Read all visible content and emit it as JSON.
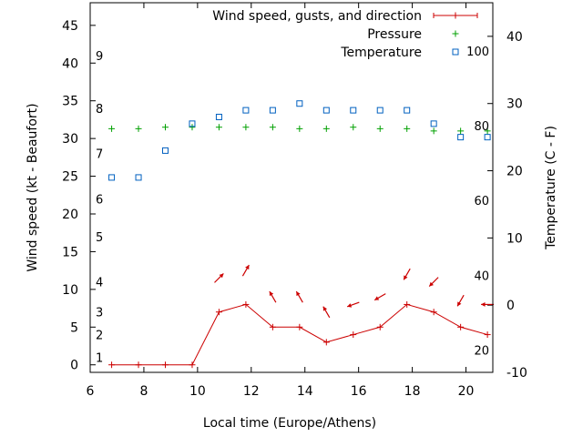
{
  "chart_data": {
    "type": "line",
    "xlabel": "Local time (Europe/Athens)",
    "ylabel_left": "Wind speed (kt - Beaufort)",
    "ylabel_right": "Temperature (C - F)",
    "xlim": [
      6,
      21
    ],
    "ylim_left": [
      -1,
      48
    ],
    "ylim_right": [
      -10,
      45
    ],
    "x_ticks": [
      6,
      8,
      10,
      12,
      14,
      16,
      18,
      20
    ],
    "y_ticks_left": [
      0,
      5,
      10,
      15,
      20,
      25,
      30,
      35,
      40,
      45
    ],
    "y_ticks_right": [
      -10,
      0,
      10,
      20,
      30,
      40
    ],
    "beaufort_labels": [
      {
        "label": "1",
        "kt": 1
      },
      {
        "label": "2",
        "kt": 4
      },
      {
        "label": "3",
        "kt": 7
      },
      {
        "label": "4",
        "kt": 11
      },
      {
        "label": "5",
        "kt": 17
      },
      {
        "label": "6",
        "kt": 22
      },
      {
        "label": "7",
        "kt": 28
      },
      {
        "label": "8",
        "kt": 34
      },
      {
        "label": "9",
        "kt": 41
      }
    ],
    "fahrenheit_labels": [
      {
        "label": "20",
        "temp_c": -6.7
      },
      {
        "label": "40",
        "temp_c": 4.4
      },
      {
        "label": "60",
        "temp_c": 15.6
      },
      {
        "label": "80",
        "temp_c": 26.7
      },
      {
        "label": "100",
        "temp_c": 37.8
      }
    ],
    "legend_position": "top-right",
    "series": [
      {
        "name": "Wind speed, gusts, and direction",
        "axis": "left",
        "style": "line-with-plus",
        "color": "#cc0000",
        "x": [
          6.8,
          7.8,
          8.8,
          9.8,
          10.8,
          11.8,
          12.8,
          13.8,
          14.8,
          15.8,
          16.8,
          17.8,
          18.8,
          19.8,
          20.8
        ],
        "y": [
          0,
          0,
          0,
          0,
          7,
          8,
          5,
          5,
          3,
          4,
          5,
          8,
          7,
          5,
          4
        ],
        "direction_arrows": [
          {
            "x": 10.8,
            "y": 11.5,
            "angle_deg": 225
          },
          {
            "x": 11.8,
            "y": 12.5,
            "angle_deg": 240
          },
          {
            "x": 12.8,
            "y": 9.0,
            "angle_deg": 300
          },
          {
            "x": 13.8,
            "y": 9.0,
            "angle_deg": 300
          },
          {
            "x": 14.8,
            "y": 7.0,
            "angle_deg": 300
          },
          {
            "x": 15.8,
            "y": 8.0,
            "angle_deg": 20
          },
          {
            "x": 16.8,
            "y": 9.0,
            "angle_deg": 30
          },
          {
            "x": 17.8,
            "y": 12.0,
            "angle_deg": 60
          },
          {
            "x": 18.8,
            "y": 11.0,
            "angle_deg": 45
          },
          {
            "x": 19.8,
            "y": 8.5,
            "angle_deg": 60
          },
          {
            "x": 20.8,
            "y": 8.0,
            "angle_deg": 0
          }
        ]
      },
      {
        "name": "Pressure",
        "axis": "left",
        "style": "plus",
        "color": "#00a000",
        "x": [
          6.8,
          7.8,
          8.8,
          9.8,
          10.8,
          11.8,
          12.8,
          13.8,
          14.8,
          15.8,
          16.8,
          17.8,
          18.8,
          19.8,
          20.8
        ],
        "y": [
          31.3,
          31.3,
          31.5,
          31.5,
          31.5,
          31.5,
          31.5,
          31.3,
          31.3,
          31.5,
          31.3,
          31.3,
          31.0,
          31.0,
          31.0
        ]
      },
      {
        "name": "Temperature",
        "axis": "right",
        "style": "open-square",
        "color": "#0060c0",
        "x": [
          6.8,
          7.8,
          8.8,
          9.8,
          10.8,
          11.8,
          12.8,
          13.8,
          14.8,
          15.8,
          16.8,
          17.8,
          18.8,
          19.8,
          20.8
        ],
        "y": [
          19,
          19,
          23,
          27,
          28,
          29,
          29,
          30,
          29,
          29,
          29,
          29,
          27,
          25,
          25
        ]
      }
    ]
  }
}
